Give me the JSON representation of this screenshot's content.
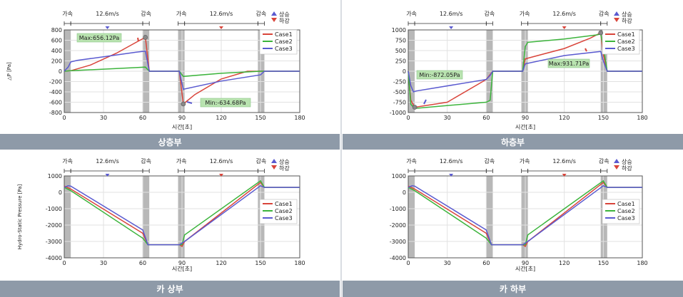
{
  "legend_direction": {
    "up": "상승",
    "down": "하강"
  },
  "phase_labels": {
    "accel": "가속",
    "speed": "12.6m/s",
    "decel": "감속"
  },
  "colors": {
    "case1": "#d9443a",
    "case2": "#3cb43c",
    "case3": "#5a5ad0",
    "band": "#8e9aa8",
    "shade": "#b8b8b8"
  },
  "panels": [
    {
      "id": "p1",
      "caption": "상층부"
    },
    {
      "id": "p2",
      "caption": "하층부"
    },
    {
      "id": "p3",
      "caption": "카 상부"
    },
    {
      "id": "p4",
      "caption": "카 하부"
    }
  ],
  "chart_data": [
    {
      "type": "line",
      "xlabel": "시간[초]",
      "ylabel": "△P [Pa]",
      "xlim": [
        0,
        180
      ],
      "ylim": [
        -800,
        800
      ],
      "xticks": [
        0,
        30,
        60,
        90,
        120,
        150,
        180
      ],
      "yticks": [
        -800,
        -600,
        -400,
        -200,
        0,
        200,
        400,
        600,
        800
      ],
      "legend": "top-right",
      "annotations": [
        {
          "text": "Max:656.12Pa"
        },
        {
          "text": "Min:-634.68Pa"
        }
      ],
      "series": [
        {
          "name": "Case1",
          "x": [
            0,
            5,
            20,
            40,
            55,
            62,
            65,
            88,
            91,
            100,
            120,
            140,
            150,
            153,
            180
          ],
          "values": [
            0,
            10,
            120,
            350,
            560,
            656,
            0,
            0,
            -634,
            -450,
            -150,
            0,
            0,
            0,
            0
          ]
        },
        {
          "name": "Case2",
          "x": [
            0,
            5,
            30,
            55,
            62,
            65,
            88,
            91,
            120,
            150,
            153,
            180
          ],
          "values": [
            0,
            10,
            40,
            70,
            80,
            0,
            0,
            -100,
            -40,
            0,
            0,
            0
          ]
        },
        {
          "name": "Case3",
          "x": [
            0,
            3,
            5,
            10,
            30,
            55,
            62,
            65,
            88,
            91,
            120,
            150,
            153,
            180
          ],
          "values": [
            0,
            80,
            180,
            210,
            280,
            370,
            390,
            0,
            0,
            -350,
            -190,
            -70,
            0,
            0
          ]
        }
      ]
    },
    {
      "type": "line",
      "xlabel": "시간[초]",
      "ylabel": "△P [Pa]",
      "xlim": [
        0,
        180
      ],
      "ylim": [
        -1000,
        1000
      ],
      "xticks": [
        0,
        30,
        60,
        90,
        120,
        150,
        180
      ],
      "yticks": [
        -1000,
        -750,
        -500,
        -250,
        0,
        250,
        500,
        750,
        1000
      ],
      "legend": "top-right",
      "annotations": [
        {
          "text": "Min:-872.05Pa"
        },
        {
          "text": "Max:931.71Pa"
        }
      ],
      "series": [
        {
          "name": "Case1",
          "x": [
            0,
            2,
            5,
            30,
            60,
            63,
            65,
            88,
            90,
            120,
            140,
            148,
            150,
            153,
            180
          ],
          "values": [
            0,
            -700,
            -872,
            -750,
            -200,
            -80,
            0,
            0,
            300,
            550,
            800,
            931,
            400,
            0,
            0
          ]
        },
        {
          "name": "Case2",
          "x": [
            0,
            2,
            5,
            60,
            62,
            63,
            65,
            88,
            90,
            92,
            120,
            145,
            148,
            150,
            153,
            180
          ],
          "values": [
            0,
            -800,
            -900,
            -750,
            -720,
            -700,
            0,
            0,
            600,
            700,
            780,
            880,
            900,
            600,
            0,
            0
          ]
        },
        {
          "name": "Case3",
          "x": [
            0,
            2,
            4,
            6,
            60,
            63,
            65,
            88,
            90,
            120,
            148,
            150,
            153,
            180
          ],
          "values": [
            0,
            -350,
            -500,
            -480,
            -200,
            -100,
            0,
            0,
            180,
            380,
            480,
            250,
            0,
            0
          ]
        }
      ]
    },
    {
      "type": "line",
      "xlabel": "시간[초]",
      "ylabel": "Hydro-Static Pressure [Pa]",
      "xlim": [
        0,
        180
      ],
      "ylim": [
        -4000,
        1000
      ],
      "xticks": [
        0,
        30,
        60,
        90,
        120,
        150,
        180
      ],
      "yticks": [
        -4000,
        -3000,
        -2000,
        -1000,
        0,
        1000
      ],
      "legend": "right",
      "series": [
        {
          "name": "Case1",
          "x": [
            0,
            5,
            60,
            64,
            88,
            90,
            92,
            150,
            153,
            180
          ],
          "values": [
            380,
            200,
            -2500,
            -3200,
            -3200,
            -3300,
            -3000,
            600,
            300,
            300
          ]
        },
        {
          "name": "Case2",
          "x": [
            0,
            5,
            60,
            64,
            88,
            90,
            92,
            150,
            153,
            180
          ],
          "values": [
            300,
            100,
            -2800,
            -3200,
            -3200,
            -3200,
            -2600,
            700,
            300,
            300
          ]
        },
        {
          "name": "Case3",
          "x": [
            0,
            3,
            5,
            60,
            64,
            88,
            90,
            92,
            150,
            153,
            180
          ],
          "values": [
            300,
            400,
            380,
            -2300,
            -3200,
            -3200,
            -3100,
            -3000,
            400,
            300,
            300
          ]
        }
      ]
    },
    {
      "type": "line",
      "xlabel": "시간[초]",
      "ylabel": "Hydro-Static Pressure [Pa]",
      "xlim": [
        0,
        180
      ],
      "ylim": [
        -4000,
        1000
      ],
      "xticks": [
        0,
        30,
        60,
        90,
        120,
        150,
        180
      ],
      "yticks": [
        -4000,
        -3000,
        -2000,
        -1000,
        0,
        1000
      ],
      "legend": "right",
      "series": [
        {
          "name": "Case1",
          "x": [
            0,
            5,
            60,
            64,
            88,
            90,
            92,
            150,
            153,
            180
          ],
          "values": [
            380,
            200,
            -2500,
            -3200,
            -3200,
            -3300,
            -3000,
            600,
            300,
            300
          ]
        },
        {
          "name": "Case2",
          "x": [
            0,
            5,
            60,
            64,
            88,
            90,
            92,
            150,
            153,
            180
          ],
          "values": [
            300,
            100,
            -2800,
            -3200,
            -3200,
            -3200,
            -2600,
            700,
            300,
            300
          ]
        },
        {
          "name": "Case3",
          "x": [
            0,
            3,
            5,
            60,
            64,
            88,
            90,
            92,
            150,
            153,
            180
          ],
          "values": [
            300,
            400,
            380,
            -2300,
            -3200,
            -3200,
            -3100,
            -3000,
            400,
            300,
            300
          ]
        }
      ]
    }
  ]
}
